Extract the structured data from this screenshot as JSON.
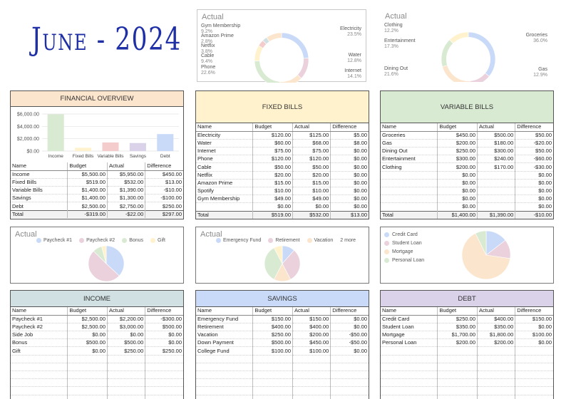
{
  "title": "June - 2024",
  "colors": {
    "blue": "#c9daf8",
    "pink": "#ead1dc",
    "green": "#d9ead3",
    "yellow": "#fff2cc",
    "orange": "#fce5cd",
    "purple": "#d9d2e9",
    "teal": "#d0e0e3",
    "lavender": "#d5d0ea",
    "overview_head": "#fce5cd",
    "fixed_head": "#fff2cc",
    "variable_head": "#d9ead3",
    "income_head": "#d0e0e3",
    "savings_head": "#c9daf8",
    "debt_head": "#d9d2e9"
  },
  "fixed_donut": {
    "title": "Actual",
    "slices": [
      {
        "name": "Electricity",
        "pct": "23.5%",
        "value": 23.5,
        "color": "#c9daf8"
      },
      {
        "name": "Water",
        "pct": "12.8%",
        "value": 12.8,
        "color": "#ead1dc"
      },
      {
        "name": "Internet",
        "pct": "14.1%",
        "value": 14.1,
        "color": "#fce5cd"
      },
      {
        "name": "Phone",
        "pct": "22.6%",
        "value": 22.6,
        "color": "#d9ead3"
      },
      {
        "name": "Cable",
        "pct": "9.4%",
        "value": 9.4,
        "color": "#fff2cc"
      },
      {
        "name": "Netflix",
        "pct": "3.8%",
        "value": 3.8,
        "color": "#f4cccc"
      },
      {
        "name": "Amazon Prime",
        "pct": "2.8%",
        "value": 2.8,
        "color": "#d0e0e3"
      },
      {
        "name": "Gym Membership",
        "pct": "9.2%",
        "value": 9.2,
        "color": "#fce5cd"
      }
    ]
  },
  "variable_donut": {
    "title": "Actual",
    "slices": [
      {
        "name": "Groceries",
        "pct": "36.0%",
        "value": 36.0,
        "color": "#c9daf8"
      },
      {
        "name": "Gas",
        "pct": "12.9%",
        "value": 12.9,
        "color": "#ead1dc"
      },
      {
        "name": "Dining Out",
        "pct": "21.6%",
        "value": 21.6,
        "color": "#fce5cd"
      },
      {
        "name": "Entertainment",
        "pct": "17.3%",
        "value": 17.3,
        "color": "#d9ead3"
      },
      {
        "name": "Clothing",
        "pct": "12.2%",
        "value": 12.2,
        "color": "#fff2cc"
      }
    ]
  },
  "overview": {
    "heading": "FINANCIAL OVERVIEW",
    "chart_data": {
      "type": "bar",
      "categories": [
        "Income",
        "Fixed Bills",
        "Variable Bills",
        "Savings",
        "Debt"
      ],
      "values": [
        5950,
        532,
        1390,
        1300,
        2750
      ],
      "colors": [
        "#d9ead3",
        "#fff2cc",
        "#f4cccc",
        "#d9d2e9",
        "#c9daf8"
      ],
      "yticks": [
        "$6,000.00",
        "$4,000.00",
        "$2,000.00",
        "$0.00"
      ],
      "ylim": [
        0,
        6000
      ]
    },
    "columns": [
      "Name",
      "Budget",
      "Actual",
      "Difference"
    ],
    "rows": [
      [
        "Income",
        "$5,500.00",
        "$5,950.00",
        "$450.00"
      ],
      [
        "Fixed Bills",
        "$519.00",
        "$532.00",
        "$13.00"
      ],
      [
        "Variable Bills",
        "$1,400.00",
        "$1,390.00",
        "-$10.00"
      ],
      [
        "Savings",
        "$1,400.00",
        "$1,300.00",
        "-$100.00"
      ],
      [
        "Debt",
        "$2,500.00",
        "$2,750.00",
        "$250.00"
      ]
    ],
    "total": [
      "Total",
      "-$319.00",
      "-$22.00",
      "$297.00"
    ]
  },
  "fixed": {
    "heading": "FIXED BILLS",
    "columns": [
      "Name",
      "Budget",
      "Actual",
      "Difference"
    ],
    "rows": [
      [
        "Electricity",
        "$120.00",
        "$125.00",
        "$5.00"
      ],
      [
        "Water",
        "$60.00",
        "$68.00",
        "$8.00"
      ],
      [
        "Internet",
        "$75.00",
        "$75.00",
        "$0.00"
      ],
      [
        "Phone",
        "$120.00",
        "$120.00",
        "$0.00"
      ],
      [
        "Cable",
        "$50.00",
        "$50.00",
        "$0.00"
      ],
      [
        "Netflix",
        "$20.00",
        "$20.00",
        "$0.00"
      ],
      [
        "Amazon Prime",
        "$15.00",
        "$15.00",
        "$0.00"
      ],
      [
        "Spotify",
        "$10.00",
        "$10.00",
        "$0.00"
      ],
      [
        "Gym Membership",
        "$49.00",
        "$49.00",
        "$0.00"
      ],
      [
        "",
        "$0.00",
        "$0.00",
        "$0.00"
      ]
    ],
    "total": [
      "Total",
      "$519.00",
      "$532.00",
      "$13.00"
    ]
  },
  "variable": {
    "heading": "VARIABLE BILLS",
    "columns": [
      "Name",
      "Budget",
      "Actual",
      "Difference"
    ],
    "rows": [
      [
        "Groceries",
        "$450.00",
        "$500.00",
        "$50.00"
      ],
      [
        "Gas",
        "$200.00",
        "$180.00",
        "-$20.00"
      ],
      [
        "Dining Out",
        "$250.00",
        "$300.00",
        "$50.00"
      ],
      [
        "Entertainment",
        "$300.00",
        "$240.00",
        "-$60.00"
      ],
      [
        "Clothing",
        "$200.00",
        "$170.00",
        "-$30.00"
      ],
      [
        "",
        "$0.00",
        "",
        "$0.00"
      ],
      [
        "",
        "$0.00",
        "",
        "$0.00"
      ],
      [
        "",
        "$0.00",
        "",
        "$0.00"
      ],
      [
        "",
        "$0.00",
        "",
        "$0.00"
      ],
      [
        "",
        "$0.00",
        "",
        "$0.00"
      ]
    ],
    "total": [
      "Total",
      "$1,400.00",
      "$1,390.00",
      "-$10.00"
    ]
  },
  "income_pie": {
    "title": "Actual",
    "legend": [
      "Paycheck #1",
      "Paycheck #2",
      "Bonus",
      "Gift"
    ],
    "values": [
      2200,
      3000,
      500,
      250
    ],
    "colors": [
      "#c9daf8",
      "#ead1dc",
      "#d9ead3",
      "#fff2cc"
    ]
  },
  "savings_pie": {
    "title": "Actual",
    "legend": [
      "Emergency Fund",
      "Retirement",
      "Vacation"
    ],
    "more": "2 more",
    "values": [
      150,
      400,
      200,
      450,
      100
    ],
    "colors": [
      "#c9daf8",
      "#ead1dc",
      "#fce5cd",
      "#d9ead3",
      "#fff2cc"
    ]
  },
  "debt_pie": {
    "legend": [
      "Credit Card",
      "Student Loan",
      "Mortgage",
      "Personal Loan"
    ],
    "values": [
      400,
      350,
      1800,
      200
    ],
    "colors": [
      "#c9daf8",
      "#ead1dc",
      "#fce5cd",
      "#d9ead3"
    ]
  },
  "income": {
    "heading": "INCOME",
    "columns": [
      "Name",
      "Budget",
      "Actual",
      "Difference"
    ],
    "rows": [
      [
        "Paycheck #1",
        "$2,500.00",
        "$2,200.00",
        "-$300.00"
      ],
      [
        "Paycheck #2",
        "$2,500.00",
        "$3,000.00",
        "$500.00"
      ],
      [
        "Side Job",
        "$0.00",
        "$0.00",
        "$0.00"
      ],
      [
        "Bonus",
        "$500.00",
        "$500.00",
        "$0.00"
      ],
      [
        "Gift",
        "$0.00",
        "$250.00",
        "$250.00"
      ],
      [
        "",
        "",
        "",
        ""
      ],
      [
        "",
        "",
        "",
        ""
      ],
      [
        "",
        "",
        "",
        ""
      ],
      [
        "",
        "",
        "",
        ""
      ],
      [
        "",
        "",
        "",
        ""
      ],
      [
        "",
        "",
        "",
        ""
      ]
    ]
  },
  "savings": {
    "heading": "SAVINGS",
    "columns": [
      "Name",
      "Budget",
      "Actual",
      "Difference"
    ],
    "rows": [
      [
        "Emergency Fund",
        "$150.00",
        "$150.00",
        "$0.00"
      ],
      [
        "Retirement",
        "$400.00",
        "$400.00",
        "$0.00"
      ],
      [
        "Vacation",
        "$250.00",
        "$200.00",
        "-$50.00"
      ],
      [
        "Down Payment",
        "$500.00",
        "$450.00",
        "-$50.00"
      ],
      [
        "College Fund",
        "$100.00",
        "$100.00",
        "$0.00"
      ],
      [
        "",
        "",
        "",
        ""
      ],
      [
        "",
        "",
        "",
        ""
      ],
      [
        "",
        "",
        "",
        ""
      ],
      [
        "",
        "",
        "",
        ""
      ],
      [
        "",
        "",
        "",
        ""
      ],
      [
        "",
        "",
        "",
        ""
      ]
    ]
  },
  "debt": {
    "heading": "DEBT",
    "columns": [
      "Name",
      "Budget",
      "Actual",
      "Difference"
    ],
    "rows": [
      [
        "Credit Card",
        "$250.00",
        "$400.00",
        "$150.00"
      ],
      [
        "Student Loan",
        "$350.00",
        "$350.00",
        "$0.00"
      ],
      [
        "Mortgage",
        "$1,700.00",
        "$1,800.00",
        "$100.00"
      ],
      [
        "Personal Loan",
        "$200.00",
        "$200.00",
        "$0.00"
      ],
      [
        "",
        "",
        "",
        ""
      ],
      [
        "",
        "",
        "",
        ""
      ],
      [
        "",
        "",
        "",
        ""
      ],
      [
        "",
        "",
        "",
        ""
      ],
      [
        "",
        "",
        "",
        ""
      ],
      [
        "",
        "",
        "",
        ""
      ],
      [
        "",
        "",
        "",
        ""
      ]
    ]
  }
}
